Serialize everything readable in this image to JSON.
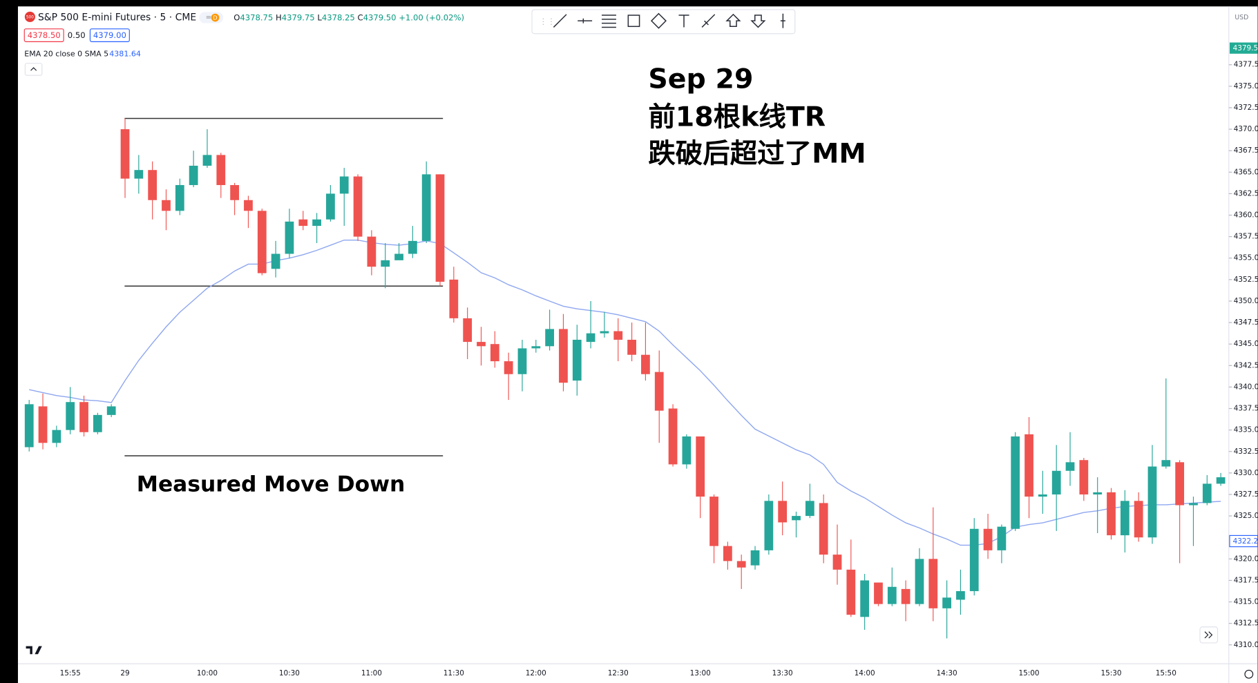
{
  "header": {
    "icon": "500",
    "symbol": "S&P 500 E-mini Futures · 5 · CME",
    "flag": "D",
    "ohlc": [
      {
        "key": "O",
        "value": "4378.75"
      },
      {
        "key": "H",
        "value": "4379.75"
      },
      {
        "key": "L",
        "value": "4378.25"
      },
      {
        "key": "C",
        "value": "4379.50"
      }
    ],
    "change": "+1.00 (+0.02%)",
    "bid": "4378.50",
    "spread": "0.50",
    "ask": "4379.00",
    "indicator_value": "4381.64"
  },
  "price_axis": {
    "currency": "USD",
    "last_price": "4379.5",
    "crosshair_price": "4322.2"
  },
  "chart_data": {
    "type": "candlestick",
    "annotations": {
      "title_lines": [
        "Sep 29",
        "前18根k线TR",
        "跌破后超过了MM"
      ],
      "measured_move": "Measured Move Down"
    },
    "categories": [
      null,
      null,
      null,
      "15:55",
      null,
      null,
      null,
      "29",
      null,
      null,
      null,
      null,
      null,
      "10:00",
      null,
      null,
      null,
      null,
      null,
      "10:30",
      null,
      null,
      null,
      null,
      null,
      "11:00",
      null,
      null,
      null,
      null,
      null,
      "11:30",
      null,
      null,
      null,
      null,
      null,
      "12:00",
      null,
      null,
      null,
      null,
      null,
      "12:30",
      null,
      null,
      null,
      null,
      null,
      "13:00",
      null,
      null,
      null,
      null,
      null,
      "13:30",
      null,
      null,
      null,
      null,
      null,
      "14:00",
      null,
      null,
      null,
      null,
      null,
      "14:30",
      null,
      null,
      null,
      null,
      null,
      "15:00",
      null,
      null,
      null,
      null,
      null,
      "15:30",
      null,
      null,
      null,
      "15:50",
      null,
      null,
      null,
      null
    ],
    "open": [
      4333,
      4337.75,
      4333.5,
      4335,
      4338.25,
      4334.75,
      4336.75,
      4370,
      4364.25,
      4365.25,
      4361.75,
      4360.5,
      4363.5,
      4365.75,
      4367,
      4363.5,
      4361.75,
      4360.5,
      4353.75,
      4355.5,
      4359.5,
      4358.75,
      4359.5,
      4362.5,
      4364.5,
      4357.5,
      4354,
      4354.75,
      4355.5,
      4357,
      4364.75,
      4352.5,
      4348,
      4345.25,
      4345,
      4343,
      4341.5,
      4344.5,
      4344.75,
      4346.75,
      4340.75,
      4345.25,
      4346.25,
      4346.5,
      4345.5,
      4343.75,
      4341.75,
      4337.5,
      4331,
      4334.25,
      4327.25,
      4321.5,
      4319.75,
      4319.25,
      4321,
      4326.75,
      4324.5,
      4325,
      4326.5,
      4320.5,
      4318.75,
      4313.25,
      4317.25,
      4314.75,
      4316.5,
      4314.75,
      4320,
      4314.25,
      4315.25,
      4316.25,
      4323.5,
      4321,
      4323.5,
      4334.5,
      4327.25,
      4327.5,
      4330.25,
      4331.5,
      4327.5,
      4327.75,
      4322.75,
      4326.75,
      4322.5,
      4330.75,
      4331.25,
      4326.25,
      4326.5,
      4328.75
    ],
    "high": [
      4338.5,
      4339.25,
      4335.5,
      4340,
      4339,
      4337,
      4338,
      4371.25,
      4367,
      4366.25,
      4363,
      4364.25,
      4367.5,
      4370,
      4367.25,
      4363.75,
      4362.25,
      4360.75,
      4357,
      4360.75,
      4360.5,
      4360.25,
      4363.5,
      4365.5,
      4364.75,
      4358.25,
      4356.75,
      4356.75,
      4358.75,
      4366.25,
      4364.75,
      4354,
      4349.25,
      4347,
      4346.5,
      4344,
      4345.5,
      4345.5,
      4349,
      4348.5,
      4347.25,
      4350,
      4348.75,
      4348,
      4347.5,
      4347.5,
      4344.25,
      4338,
      4334.5,
      4334.25,
      4327.5,
      4322,
      4320.5,
      4321.5,
      4327.5,
      4329,
      4325.5,
      4328.75,
      4327.5,
      4324,
      4322.25,
      4318.25,
      4317.25,
      4319,
      4317.5,
      4321.25,
      4326,
      4317.5,
      4318.75,
      4324.75,
      4325.25,
      4324,
      4334.75,
      4336.5,
      4330.25,
      4333.25,
      4334.75,
      4331.75,
      4329.5,
      4328.25,
      4328,
      4327.75,
      4333.25,
      4341,
      4331.5,
      4327.25,
      4329.75,
      4330
    ],
    "low": [
      4332.5,
      4332.75,
      4333,
      4334.5,
      4334.25,
      4334.5,
      4336.5,
      4362,
      4362.5,
      4359.5,
      4358.25,
      4360,
      4363.25,
      4365.5,
      4362,
      4360,
      4358.5,
      4353,
      4352.75,
      4355,
      4358.25,
      4356.75,
      4359.25,
      4358.75,
      4357,
      4353,
      4351.5,
      4355,
      4355,
      4356.75,
      4351.75,
      4347.5,
      4343.25,
      4342.5,
      4342.25,
      4338.5,
      4339.5,
      4344,
      4344.25,
      4339.5,
      4339,
      4344.5,
      4345.75,
      4343,
      4343,
      4340.75,
      4333.5,
      4330.75,
      4330.5,
      4324.75,
      4319.5,
      4318.75,
      4316.5,
      4318.75,
      4320.5,
      4322.75,
      4322.5,
      4324.75,
      4319.5,
      4317,
      4313.25,
      4311.75,
      4314.5,
      4314.5,
      4312.75,
      4314.5,
      4312.75,
      4310.75,
      4313.5,
      4315.75,
      4320,
      4319.5,
      4323.25,
      4324.75,
      4325.25,
      4323.25,
      4328.5,
      4326.75,
      4323,
      4322.25,
      4320.75,
      4322,
      4321.75,
      4330.5,
      4319.5,
      4321.5,
      4326.25,
      4328.5
    ],
    "close": [
      4338,
      4333.5,
      4335,
      4338.25,
      4334.75,
      4336.75,
      4337.75,
      4364.25,
      4365.25,
      4361.75,
      4360.5,
      4363.5,
      4365.75,
      4367,
      4363.5,
      4361.75,
      4360.5,
      4353.25,
      4355.5,
      4359.25,
      4358.75,
      4359.5,
      4362.5,
      4364.5,
      4357.5,
      4354,
      4354.75,
      4355.5,
      4357,
      4364.75,
      4352.25,
      4348,
      4345.25,
      4344.75,
      4343,
      4341.5,
      4344.5,
      4344.75,
      4346.75,
      4340.5,
      4345.5,
      4346.25,
      4346.5,
      4345.5,
      4343.75,
      4341.5,
      4337.25,
      4331,
      4334.25,
      4327.25,
      4321.5,
      4319.75,
      4319,
      4321,
      4326.75,
      4324.25,
      4325,
      4326.75,
      4320.5,
      4318.75,
      4313.5,
      4317.5,
      4314.75,
      4316.75,
      4314.75,
      4320,
      4314.25,
      4315.5,
      4316.25,
      4323.5,
      4321,
      4323.75,
      4334.25,
      4327.25,
      4327.5,
      4330.25,
      4331.25,
      4327.5,
      4327.75,
      4322.75,
      4326.75,
      4322.5,
      4330.75,
      4331.5,
      4326.25,
      4326.5,
      4328.75,
      4329.5
    ],
    "up_color": "#26a69a",
    "down_color": "#ef5350",
    "ema": {
      "name": "EMA 20 close 0 SMA 5",
      "color": "#8ea6ef",
      "values": [
        4339.7,
        4339.35,
        4339,
        4338.8,
        4338.5,
        4338.4,
        4338.2,
        4340.75,
        4343.1,
        4345.1,
        4347,
        4348.7,
        4350.1,
        4351.5,
        4352.4,
        4353.5,
        4354.3,
        4354.3,
        4354.7,
        4355,
        4355.4,
        4355.9,
        4356.5,
        4357.1,
        4357.1,
        4356.8,
        4356.6,
        4356.5,
        4356.7,
        4357,
        4356.7,
        4355.6,
        4354.5,
        4353.3,
        4352.7,
        4351.9,
        4351.3,
        4350.6,
        4350,
        4349.4,
        4349.1,
        4348.9,
        4348.7,
        4348.4,
        4348,
        4347.6,
        4346.5,
        4344.9,
        4343.4,
        4341.9,
        4340.2,
        4338.4,
        4336.7,
        4335.1,
        4334.3,
        4333.5,
        4332.7,
        4332.1,
        4331,
        4328.9,
        4327.9,
        4327.1,
        4326.1,
        4325.1,
        4324.2,
        4323.6,
        4322.9,
        4322.3,
        4321.6,
        4321.6,
        4321.8,
        4322.6,
        4323.7,
        4324,
        4324.2,
        4324.6,
        4325,
        4325.4,
        4325.6,
        4325.9,
        4326.1,
        4326.2,
        4326.3,
        4326.3,
        4326.4,
        4326.5,
        4326.6,
        4326.7
      ]
    },
    "level_lines": [
      4371.25,
      4351.75,
      4332
    ],
    "level_color": "#333333",
    "ylim": [
      4307.8,
      4384.1
    ],
    "yticks": [
      4377.5,
      {
        "value": 4375,
        "label": "4375.0"
      },
      4372.5,
      {
        "value": 4370,
        "label": "4370.0"
      },
      4367.5,
      {
        "value": 4365,
        "label": "4365.0"
      },
      4362.5,
      {
        "value": 4360,
        "label": "4360.0"
      },
      4357.5,
      {
        "value": 4355,
        "label": "4355.0"
      },
      4352.5,
      {
        "value": 4350,
        "label": "4350.0"
      },
      4347.5,
      {
        "value": 4345,
        "label": "4345.0"
      },
      4342.5,
      {
        "value": 4340,
        "label": "4340.0"
      },
      4337.5,
      {
        "value": 4335,
        "label": "4335.0"
      },
      4332.5,
      {
        "value": 4330,
        "label": "4330.0"
      },
      4327.5,
      {
        "value": 4325,
        "label": "4325.0"
      },
      {
        "value": 4320,
        "label": "4320.0"
      },
      4317.5,
      {
        "value": 4315,
        "label": "4315.0"
      },
      4312.5,
      {
        "value": 4310,
        "label": "4310.0"
      }
    ],
    "grid": false
  }
}
